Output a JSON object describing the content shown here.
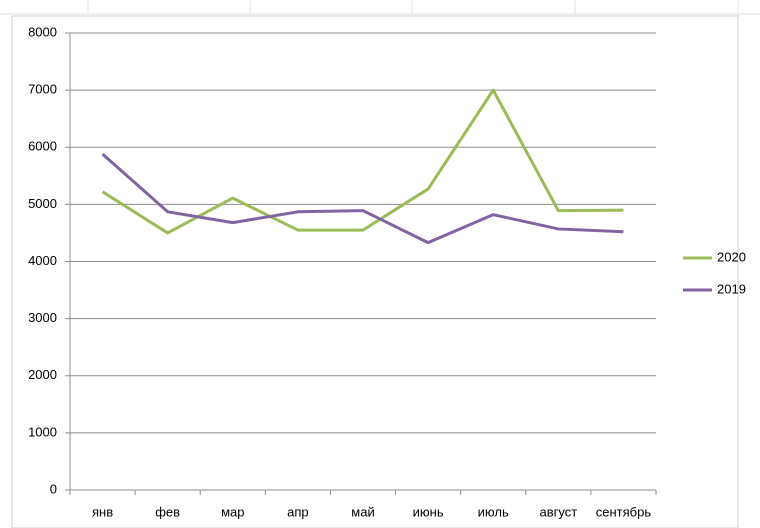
{
  "chart_data": {
    "type": "line",
    "categories": [
      "янв",
      "фев",
      "мар",
      "апр",
      "май",
      "июнь",
      "июль",
      "август",
      "сентябрь"
    ],
    "series": [
      {
        "name": "2020",
        "color": "#9bbb59",
        "values": [
          5220,
          4500,
          5110,
          4550,
          4550,
          5270,
          7000,
          4890,
          4900
        ]
      },
      {
        "name": "2019",
        "color": "#8064a2",
        "values": [
          5880,
          4870,
          4680,
          4870,
          4890,
          4330,
          4820,
          4570,
          4520
        ]
      }
    ],
    "ylim": [
      0,
      8000
    ],
    "yticks": [
      0,
      1000,
      2000,
      3000,
      4000,
      5000,
      6000,
      7000,
      8000
    ],
    "grid": true,
    "legend": "right"
  }
}
